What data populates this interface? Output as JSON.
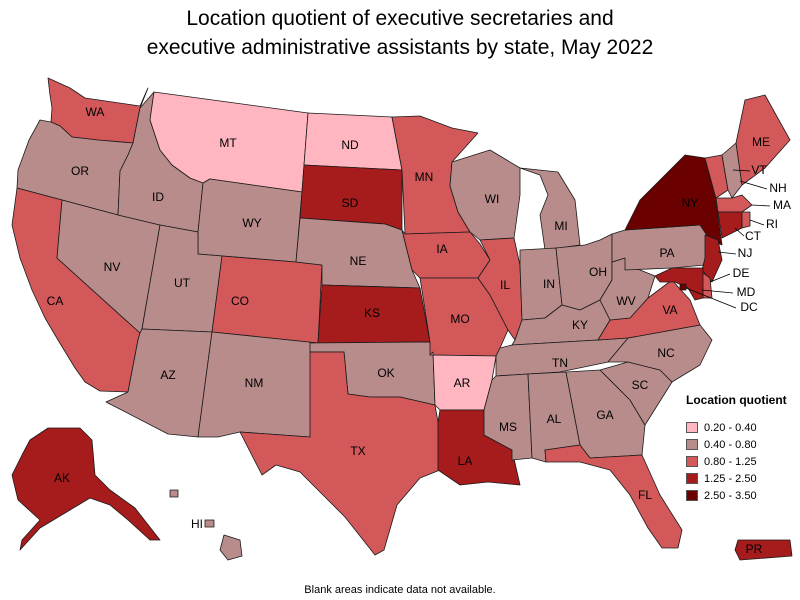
{
  "title": {
    "line1": "Location quotient of executive secretaries and",
    "line2": "executive administrative assistants by state, May 2022"
  },
  "footnote": "Blank areas indicate data not available.",
  "legend": {
    "title": "Location quotient",
    "items": [
      {
        "label": "0.20 - 0.40",
        "color": "#ffb6c1"
      },
      {
        "label": "0.40 - 0.80",
        "color": "#b98c8c"
      },
      {
        "label": "0.80 - 1.25",
        "color": "#d2585a"
      },
      {
        "label": "1.25 - 2.50",
        "color": "#a61c1c"
      },
      {
        "label": "2.50 - 3.50",
        "color": "#6a0000"
      }
    ]
  },
  "states": [
    {
      "abbr": "WA",
      "range": "0.80 - 1.25"
    },
    {
      "abbr": "OR",
      "range": "0.40 - 0.80"
    },
    {
      "abbr": "CA",
      "range": "0.80 - 1.25"
    },
    {
      "abbr": "NV",
      "range": "0.40 - 0.80"
    },
    {
      "abbr": "ID",
      "range": "0.40 - 0.80"
    },
    {
      "abbr": "MT",
      "range": "0.20 - 0.40"
    },
    {
      "abbr": "WY",
      "range": "0.40 - 0.80"
    },
    {
      "abbr": "UT",
      "range": "0.40 - 0.80"
    },
    {
      "abbr": "AZ",
      "range": "0.40 - 0.80"
    },
    {
      "abbr": "CO",
      "range": "0.80 - 1.25"
    },
    {
      "abbr": "NM",
      "range": "0.40 - 0.80"
    },
    {
      "abbr": "ND",
      "range": "0.20 - 0.40"
    },
    {
      "abbr": "SD",
      "range": "1.25 - 2.50"
    },
    {
      "abbr": "NE",
      "range": "0.40 - 0.80"
    },
    {
      "abbr": "KS",
      "range": "1.25 - 2.50"
    },
    {
      "abbr": "OK",
      "range": "0.40 - 0.80"
    },
    {
      "abbr": "TX",
      "range": "0.80 - 1.25"
    },
    {
      "abbr": "MN",
      "range": "0.80 - 1.25"
    },
    {
      "abbr": "IA",
      "range": "0.80 - 1.25"
    },
    {
      "abbr": "MO",
      "range": "0.80 - 1.25"
    },
    {
      "abbr": "AR",
      "range": "0.20 - 0.40"
    },
    {
      "abbr": "LA",
      "range": "1.25 - 2.50"
    },
    {
      "abbr": "WI",
      "range": "0.40 - 0.80"
    },
    {
      "abbr": "IL",
      "range": "0.80 - 1.25"
    },
    {
      "abbr": "MI",
      "range": "0.40 - 0.80"
    },
    {
      "abbr": "IN",
      "range": "0.40 - 0.80"
    },
    {
      "abbr": "OH",
      "range": "0.40 - 0.80"
    },
    {
      "abbr": "KY",
      "range": "0.40 - 0.80"
    },
    {
      "abbr": "TN",
      "range": "0.40 - 0.80"
    },
    {
      "abbr": "MS",
      "range": "0.40 - 0.80"
    },
    {
      "abbr": "AL",
      "range": "0.40 - 0.80"
    },
    {
      "abbr": "GA",
      "range": "0.40 - 0.80"
    },
    {
      "abbr": "FL",
      "range": "0.80 - 1.25"
    },
    {
      "abbr": "SC",
      "range": "0.40 - 0.80"
    },
    {
      "abbr": "NC",
      "range": "0.40 - 0.80"
    },
    {
      "abbr": "VA",
      "range": "0.80 - 1.25"
    },
    {
      "abbr": "WV",
      "range": "0.40 - 0.80"
    },
    {
      "abbr": "PA",
      "range": "0.40 - 0.80"
    },
    {
      "abbr": "NY",
      "range": "2.50 - 3.50"
    },
    {
      "abbr": "ME",
      "range": "0.80 - 1.25"
    },
    {
      "abbr": "VT",
      "range": "0.80 - 1.25"
    },
    {
      "abbr": "NH",
      "range": "0.40 - 0.80"
    },
    {
      "abbr": "MA",
      "range": "0.80 - 1.25"
    },
    {
      "abbr": "RI",
      "range": "0.80 - 1.25"
    },
    {
      "abbr": "CT",
      "range": "1.25 - 2.50"
    },
    {
      "abbr": "NJ",
      "range": "1.25 - 2.50"
    },
    {
      "abbr": "DE",
      "range": "0.80 - 1.25"
    },
    {
      "abbr": "MD",
      "range": "1.25 - 2.50"
    },
    {
      "abbr": "DC",
      "range": "2.50 - 3.50"
    },
    {
      "abbr": "AK",
      "range": "1.25 - 2.50"
    },
    {
      "abbr": "HI",
      "range": "0.40 - 0.80"
    },
    {
      "abbr": "PR",
      "range": "1.25 - 2.50"
    }
  ]
}
